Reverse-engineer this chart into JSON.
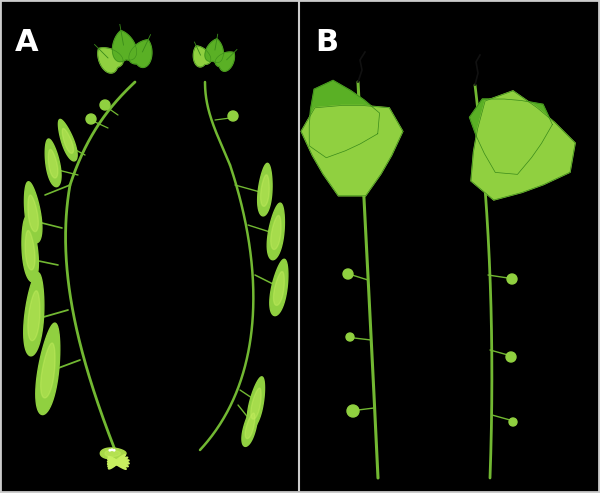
{
  "background_color": "#000000",
  "label_A": "A",
  "label_B": "B",
  "label_color": "#ffffff",
  "label_fontsize": 22,
  "label_fontweight": "bold",
  "fig_width": 6.0,
  "fig_height": 4.93,
  "dpi": 100,
  "stem_color": "#72b832",
  "leaf_color_dark": "#3a8a1a",
  "leaf_color_mid": "#5ab025",
  "leaf_color_light": "#90d040",
  "bud_color": "#a8d848",
  "bud_color_light": "#c8f060",
  "border_color": "#cccccc",
  "border_linewidth": 1.0,
  "panel_split": 0.5
}
